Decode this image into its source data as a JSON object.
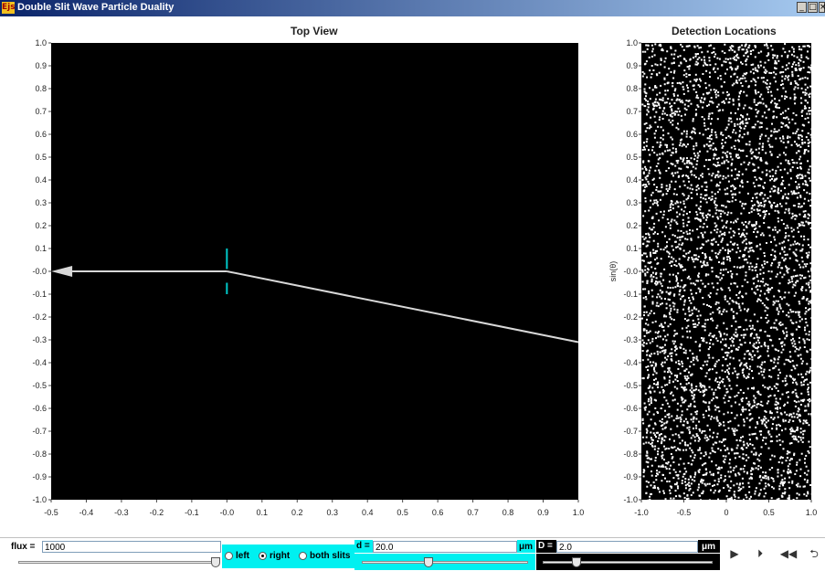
{
  "window": {
    "title": "Double Slit Wave Particle Duality",
    "app_icon": "Ejs"
  },
  "top_view": {
    "title": "Top View",
    "x_ticks": [
      "-0.5",
      "-0.4",
      "-0.3",
      "-0.2",
      "-0.1",
      "-0.0",
      "0.1",
      "0.2",
      "0.3",
      "0.4",
      "0.5",
      "0.6",
      "0.7",
      "0.8",
      "0.9",
      "1.0"
    ],
    "y_ticks": [
      "1.0",
      "0.9",
      "0.8",
      "0.7",
      "0.6",
      "0.5",
      "0.4",
      "0.3",
      "0.2",
      "0.1",
      "-0.0",
      "-0.1",
      "-0.2",
      "-0.3",
      "-0.4",
      "-0.5",
      "-0.6",
      "-0.7",
      "-0.8",
      "-0.9",
      "-1.0"
    ],
    "background_color": "#000000",
    "barrier_color": "#00c8c8",
    "beam_color": "#d8d8d8"
  },
  "detection": {
    "title": "Detection Locations",
    "ylabel": "sin(θ)",
    "x_ticks": [
      "-1.0",
      "-0.5",
      "0",
      "0.5",
      "1.0"
    ],
    "y_ticks": [
      "1.0",
      "0.9",
      "0.8",
      "0.7",
      "0.6",
      "0.5",
      "0.4",
      "0.3",
      "0.2",
      "0.1",
      "-0.0",
      "-0.1",
      "-0.2",
      "-0.3",
      "-0.4",
      "-0.5",
      "-0.6",
      "-0.7",
      "-0.8",
      "-0.9",
      "-1.0"
    ]
  },
  "controls": {
    "flux_label": "flux =",
    "flux_value": "1000",
    "flux_slider_fraction": 0.98,
    "slit_options": [
      "left",
      "right",
      "both slits"
    ],
    "selected_slit": "right",
    "d_label": "d =",
    "d_value": "20.0",
    "d_unit": "μm",
    "d_slider_fraction": 0.4,
    "D_label": "D =",
    "D_value": "2.0",
    "D_unit": "μm",
    "D_slider_fraction": 0.2
  },
  "playback": {
    "play_icon": "play-icon",
    "step_icon": "step-icon",
    "rewind_icon": "rewind-icon",
    "reset_icon": "reset-icon"
  }
}
